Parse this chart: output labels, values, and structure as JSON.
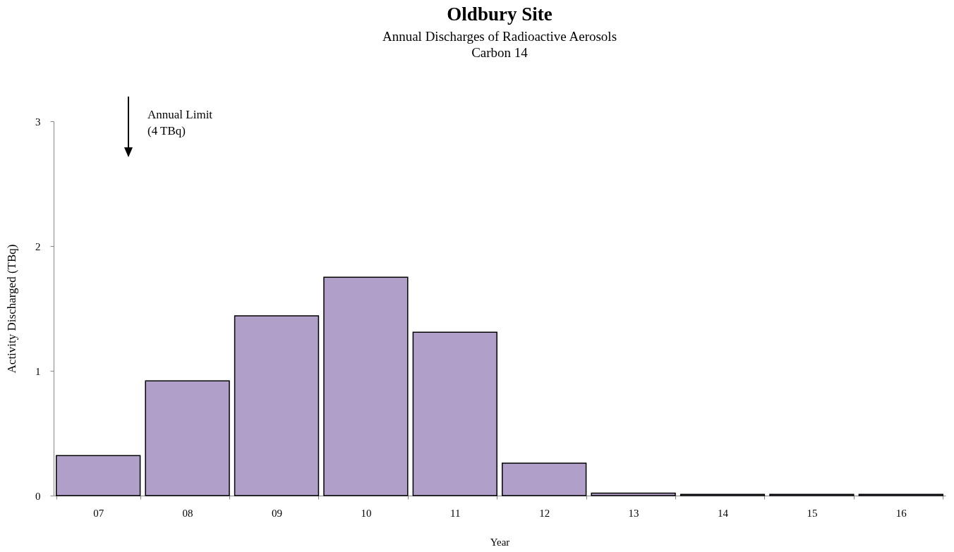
{
  "chart_data": {
    "type": "bar",
    "title": "Oldbury Site",
    "subtitle": "Annual Discharges of Radioactive Aerosols\nCarbon 14",
    "xlabel": "Year",
    "ylabel": "Activity Discharged (TBq)",
    "annotations": [
      "Annual Limit\n(4 TBq)"
    ],
    "categories": [
      "07",
      "08",
      "09",
      "10",
      "11",
      "12",
      "13",
      "14",
      "15",
      "16"
    ],
    "values": [
      0.32,
      0.92,
      1.44,
      1.75,
      1.31,
      0.26,
      0.02,
      0.01,
      0.01,
      0.01
    ],
    "color": "#b09fc8",
    "ylim": [
      0,
      3
    ],
    "yticks": [
      0,
      1,
      2,
      3
    ],
    "grid": false
  }
}
